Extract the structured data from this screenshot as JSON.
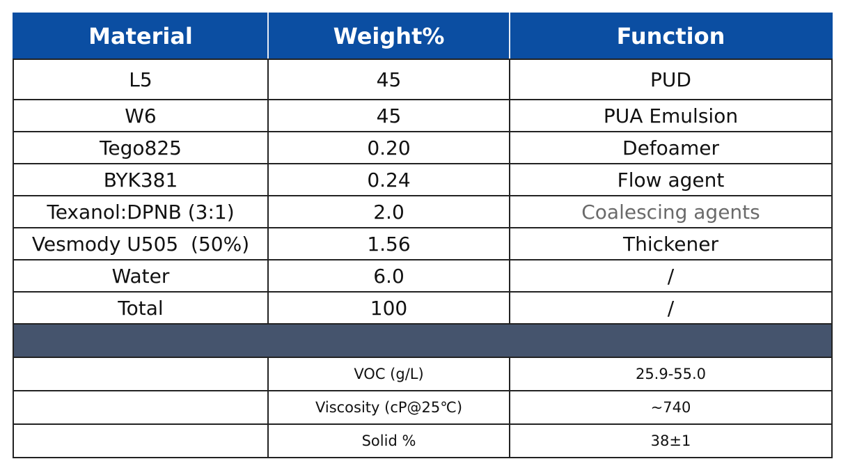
{
  "table": {
    "headers": [
      "Material",
      "Weight%",
      "Function"
    ],
    "rows": [
      {
        "material": "L5",
        "weight": "45",
        "function": "PUD"
      },
      {
        "material": "W6",
        "weight": "45",
        "function": "PUA Emulsion"
      },
      {
        "material": "Tego825",
        "weight": "0.20",
        "function": "Defoamer"
      },
      {
        "material": "BYK381",
        "weight": "0.24",
        "function": "Flow agent"
      },
      {
        "material": "Texanol:DPNB (3:1)",
        "weight": "2.0",
        "function": "Coalescing agents"
      },
      {
        "material": "Vesmody U505  (50%)",
        "weight": "1.56",
        "function": "Thickener"
      },
      {
        "material": "Water",
        "weight": "6.0",
        "function": "/"
      },
      {
        "material": "Total",
        "weight": "100",
        "function": "/"
      }
    ],
    "properties": [
      {
        "label": "",
        "name": "VOC (g/L)",
        "value": "25.9-55.0"
      },
      {
        "label": "",
        "name": "Viscosity (cP@25℃)",
        "value": "~740"
      },
      {
        "label": "",
        "name": "Solid %",
        "value": "38±1"
      }
    ]
  },
  "colors": {
    "header_background": "#0b4ea2",
    "band_background": "#45546d"
  }
}
